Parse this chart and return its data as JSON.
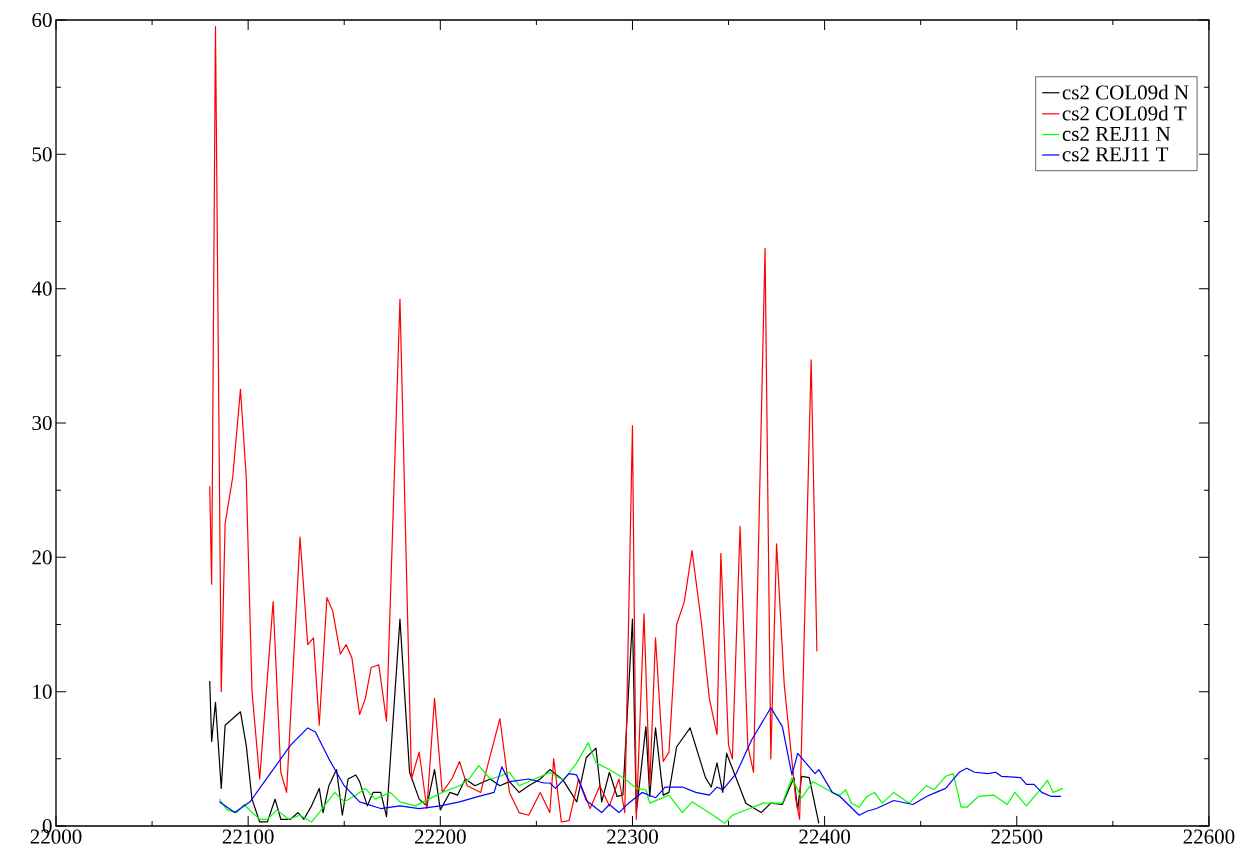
{
  "chart_data": {
    "type": "line",
    "xlim": [
      22000,
      22600
    ],
    "ylim": [
      0,
      60
    ],
    "xticks": [
      22000,
      22100,
      22200,
      22300,
      22400,
      22500,
      22600
    ],
    "yticks": [
      0,
      10,
      20,
      30,
      40,
      50,
      60
    ],
    "legend": "top right",
    "grid": false,
    "marker": "none",
    "line_style": "solid",
    "series": [
      {
        "name": "cs2 COL09d N",
        "color": "#000000",
        "x": [
          22080,
          22081,
          22083,
          22086,
          22088,
          22096,
          22099,
          22102,
          22106,
          22110,
          22114,
          22117,
          22122,
          22126,
          22129,
          22133,
          22137,
          22139,
          22142,
          22146,
          22149,
          22152,
          22156,
          22158,
          22162,
          22165,
          22169,
          22172,
          22179,
          22184,
          22189,
          22193,
          22197,
          22200,
          22205,
          22209,
          22213,
          22218,
          22226,
          22231,
          22236,
          22241,
          22246,
          22252,
          22257,
          22264,
          22271,
          22276,
          22281,
          22284,
          22288,
          22292,
          22295,
          22300,
          22302,
          22307,
          22309,
          22312,
          22316,
          22319,
          22323,
          22330,
          22338,
          22341,
          22344,
          22347,
          22349,
          22359,
          22367,
          22372,
          22378,
          22384,
          22386,
          22388,
          22392,
          22397
        ],
        "values": [
          10.8,
          6.3,
          9.2,
          2.8,
          7.5,
          8.5,
          6,
          2,
          0.3,
          0.3,
          2,
          0.5,
          0.5,
          1,
          0.5,
          1.5,
          2.8,
          1,
          3,
          4.2,
          0.8,
          3.5,
          3.8,
          3.3,
          1.5,
          2.5,
          2.5,
          0.7,
          15.4,
          4,
          2,
          1.5,
          4.2,
          1.2,
          2.5,
          2.3,
          3.5,
          3,
          3.5,
          3,
          3.3,
          2.5,
          3,
          3.5,
          4.2,
          3.4,
          1.8,
          5.1,
          5.8,
          1.8,
          4,
          2.2,
          2.3,
          15.4,
          1,
          7.4,
          2.2,
          7.3,
          2.3,
          2.5,
          5.9,
          7.3,
          3.6,
          2.9,
          4.7,
          2.5,
          5.4,
          1.7,
          1,
          1.7,
          1.6,
          3.6,
          1.2,
          3.7,
          3.6,
          0.2
        ]
      },
      {
        "name": "cs2 COL09d T",
        "color": "#ff0000",
        "x": [
          22080,
          22081,
          22083,
          22086,
          22088,
          22092,
          22096,
          22099,
          22102,
          22106,
          22113,
          22117,
          22120,
          22127,
          22131,
          22134,
          22137,
          22141,
          22144,
          22148,
          22151,
          22154,
          22158,
          22161,
          22164,
          22168,
          22172,
          22179,
          22185,
          22189,
          22193,
          22197,
          22201,
          22206,
          22210,
          22214,
          22221,
          22231,
          22236,
          22241,
          22246,
          22252,
          22257,
          22259,
          22263,
          22267,
          22272,
          22278,
          22283,
          22288,
          22293,
          22296,
          22300,
          22302,
          22306,
          22309,
          22312,
          22316,
          22319,
          22323,
          22327,
          22331,
          22336,
          22340,
          22344,
          22346,
          22350,
          22352,
          22356,
          22360,
          22363,
          22369,
          22372,
          22375,
          22379,
          22385,
          22387,
          22393,
          22396
        ],
        "values": [
          25.3,
          18,
          59.5,
          10,
          22.5,
          26,
          32.5,
          26,
          10,
          3.5,
          16.7,
          4,
          2.5,
          21.5,
          13.5,
          14,
          7.5,
          17,
          16,
          12.8,
          13.5,
          12.5,
          8.3,
          9.5,
          11.8,
          12,
          7.8,
          39.2,
          3.5,
          5.5,
          1.3,
          9.5,
          2.5,
          3.5,
          4.8,
          3,
          2.5,
          8,
          2.5,
          1,
          0.8,
          2.5,
          1,
          5,
          0.3,
          0.4,
          3.5,
          1.3,
          3,
          1.5,
          3.5,
          1,
          29.8,
          0.5,
          15.8,
          3,
          14,
          4.8,
          5.5,
          15,
          16.7,
          20.5,
          15,
          9.5,
          6.8,
          20.3,
          6,
          5,
          22.3,
          6,
          4,
          43,
          5,
          21,
          10.5,
          2,
          0.5,
          34.7,
          13
        ]
      },
      {
        "name": "cs2 REJ11 N",
        "color": "#00ff00",
        "x": [
          22085,
          22089,
          22094,
          22098,
          22102,
          22106,
          22110,
          22115,
          22121,
          22127,
          22133,
          22137,
          22145,
          22150,
          22155,
          22161,
          22166,
          22174,
          22179,
          22187,
          22194,
          22201,
          22210,
          22215,
          22220,
          22226,
          22231,
          22236,
          22241,
          22249,
          22254,
          22257,
          22264,
          22271,
          22277,
          22281,
          22288,
          22297,
          22302,
          22307,
          22309,
          22319,
          22326,
          22331,
          22342,
          22348,
          22352,
          22361,
          22368,
          22378,
          22383,
          22388,
          22394,
          22404,
          22408,
          22411,
          22414,
          22418,
          22422,
          22426,
          22430,
          22436,
          22444,
          22453,
          22457,
          22463,
          22467,
          22471,
          22474,
          22480,
          22488,
          22495,
          22499,
          22505,
          22511,
          22516,
          22519,
          22524
        ],
        "values": [
          2,
          1.2,
          1,
          1.6,
          1,
          0.5,
          0.5,
          1.2,
          0.5,
          0.8,
          0.3,
          1,
          2.5,
          1.8,
          2.2,
          2.8,
          2,
          2.5,
          1.8,
          1.5,
          2,
          2.5,
          3,
          3.5,
          4.5,
          3.5,
          3.7,
          4,
          3,
          3.5,
          3.8,
          4,
          3.4,
          4.7,
          6.2,
          4.7,
          4.2,
          3.4,
          2.8,
          2.7,
          1.7,
          2.3,
          1,
          1.8,
          0.8,
          0.2,
          0.8,
          1.3,
          1.7,
          1.7,
          3.6,
          2.1,
          3.3,
          2.5,
          2.3,
          2.7,
          1.7,
          1.4,
          2.2,
          2.5,
          1.7,
          2.5,
          1.7,
          3,
          2.7,
          3.7,
          3.9,
          1.4,
          1.4,
          2.2,
          2.3,
          1.6,
          2.5,
          1.5,
          2.5,
          3.4,
          2.5,
          2.8
        ]
      },
      {
        "name": "cs2 REJ11 T",
        "color": "#0000ff",
        "x": [
          22085,
          22093,
          22101,
          22111,
          22122,
          22131,
          22135,
          22142,
          22150,
          22158,
          22169,
          22179,
          22189,
          22200,
          22210,
          22220,
          22228,
          22232,
          22236,
          22246,
          22254,
          22257,
          22260,
          22267,
          22271,
          22276,
          22284,
          22288,
          22293,
          22298,
          22305,
          22312,
          22317,
          22326,
          22333,
          22340,
          22344,
          22347,
          22354,
          22362,
          22372,
          22378,
          22383,
          22386,
          22395,
          22397,
          22404,
          22408,
          22418,
          22422,
          22427,
          22436,
          22446,
          22453,
          22458,
          22463,
          22470,
          22474,
          22478,
          22485,
          22489,
          22492,
          22502,
          22505,
          22509,
          22513,
          22518,
          22523
        ],
        "values": [
          1.8,
          1,
          1.8,
          3.8,
          6,
          7.3,
          7,
          5,
          3,
          1.8,
          1.3,
          1.5,
          1.3,
          1.5,
          1.8,
          2.2,
          2.5,
          4.4,
          3.3,
          3.5,
          3.2,
          3.2,
          2.8,
          3.9,
          3.8,
          1.9,
          1,
          1.6,
          1,
          1.7,
          2.5,
          2.1,
          2.9,
          2.9,
          2.5,
          2.3,
          2.9,
          2.7,
          3.9,
          6.4,
          8.8,
          7.4,
          3.8,
          5.4,
          3.9,
          4.2,
          2.5,
          2.2,
          0.8,
          1.1,
          1.3,
          1.9,
          1.6,
          2.2,
          2.5,
          2.8,
          4,
          4.3,
          4,
          3.9,
          4,
          3.7,
          3.6,
          3.1,
          3.1,
          2.5,
          2.2,
          2.2
        ]
      }
    ]
  }
}
